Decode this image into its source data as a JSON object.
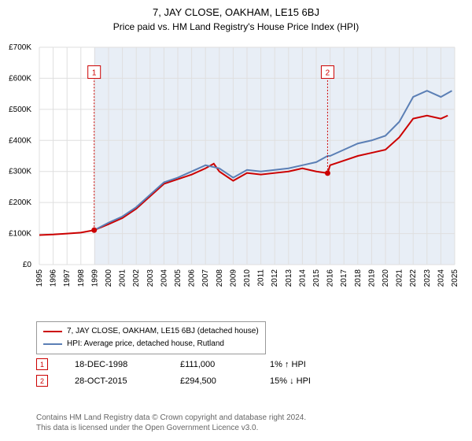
{
  "title": "7, JAY CLOSE, OAKHAM, LE15 6BJ",
  "subtitle": "Price paid vs. HM Land Registry's House Price Index (HPI)",
  "chart": {
    "type": "line",
    "background_color": "#ffffff",
    "plot_band_color": "#e8eef6",
    "grid_color": "#dfdfdf",
    "text_color": "#000000",
    "title_fontsize": 13,
    "subtitle_fontsize": 12,
    "tick_fontsize": 10,
    "x": {
      "min": 1995,
      "max": 2025,
      "tick_step": 1
    },
    "y": {
      "min": 0,
      "max": 700000,
      "tick_step": 100000,
      "prefix": "£",
      "suffix": "K",
      "divisor": 1000
    },
    "series": [
      {
        "name": "7, JAY CLOSE, OAKHAM, LE15 6BJ (detached house)",
        "color": "#cc0000",
        "line_width": 2,
        "points": [
          [
            1995,
            95000
          ],
          [
            1996,
            97000
          ],
          [
            1997,
            100000
          ],
          [
            1998,
            103000
          ],
          [
            1998.96,
            111000
          ],
          [
            2000,
            130000
          ],
          [
            2001,
            150000
          ],
          [
            2002,
            180000
          ],
          [
            2003,
            220000
          ],
          [
            2004,
            260000
          ],
          [
            2005,
            275000
          ],
          [
            2006,
            290000
          ],
          [
            2007,
            310000
          ],
          [
            2007.6,
            325000
          ],
          [
            2008,
            300000
          ],
          [
            2009,
            270000
          ],
          [
            2010,
            295000
          ],
          [
            2011,
            290000
          ],
          [
            2012,
            295000
          ],
          [
            2013,
            300000
          ],
          [
            2014,
            310000
          ],
          [
            2015,
            300000
          ],
          [
            2015.82,
            294500
          ],
          [
            2016,
            320000
          ],
          [
            2017,
            335000
          ],
          [
            2018,
            350000
          ],
          [
            2019,
            360000
          ],
          [
            2020,
            370000
          ],
          [
            2021,
            410000
          ],
          [
            2022,
            470000
          ],
          [
            2023,
            480000
          ],
          [
            2024,
            470000
          ],
          [
            2024.5,
            480000
          ]
        ]
      },
      {
        "name": "HPI: Average price, detached house, Rutland",
        "color": "#5b7fb5",
        "line_width": 2,
        "start_year": 1998.96,
        "points": [
          [
            1998.96,
            111000
          ],
          [
            2000,
            135000
          ],
          [
            2001,
            155000
          ],
          [
            2002,
            185000
          ],
          [
            2003,
            225000
          ],
          [
            2004,
            265000
          ],
          [
            2005,
            280000
          ],
          [
            2006,
            300000
          ],
          [
            2007,
            320000
          ],
          [
            2008,
            310000
          ],
          [
            2009,
            280000
          ],
          [
            2010,
            305000
          ],
          [
            2011,
            300000
          ],
          [
            2012,
            305000
          ],
          [
            2013,
            310000
          ],
          [
            2014,
            320000
          ],
          [
            2015,
            330000
          ],
          [
            2015.82,
            350000
          ],
          [
            2016,
            350000
          ],
          [
            2017,
            370000
          ],
          [
            2018,
            390000
          ],
          [
            2019,
            400000
          ],
          [
            2020,
            415000
          ],
          [
            2021,
            460000
          ],
          [
            2022,
            540000
          ],
          [
            2023,
            560000
          ],
          [
            2024,
            540000
          ],
          [
            2024.8,
            560000
          ]
        ]
      }
    ],
    "markers": [
      {
        "n": 1,
        "x": 1998.96,
        "y": 111000,
        "color": "#cc0000"
      },
      {
        "n": 2,
        "x": 2015.82,
        "y": 294500,
        "color": "#cc0000"
      }
    ],
    "flag_y": 620000
  },
  "legend": [
    {
      "color": "#cc0000",
      "label": "7, JAY CLOSE, OAKHAM, LE15 6BJ (detached house)"
    },
    {
      "color": "#5b7fb5",
      "label": "HPI: Average price, detached house, Rutland"
    }
  ],
  "sales": [
    {
      "n": 1,
      "color": "#cc0000",
      "date": "18-DEC-1998",
      "price": "£111,000",
      "delta": "1% ↑ HPI"
    },
    {
      "n": 2,
      "color": "#cc0000",
      "date": "28-OCT-2015",
      "price": "£294,500",
      "delta": "15% ↓ HPI"
    }
  ],
  "footnote_line1": "Contains HM Land Registry data © Crown copyright and database right 2024.",
  "footnote_line2": "This data is licensed under the Open Government Licence v3.0."
}
